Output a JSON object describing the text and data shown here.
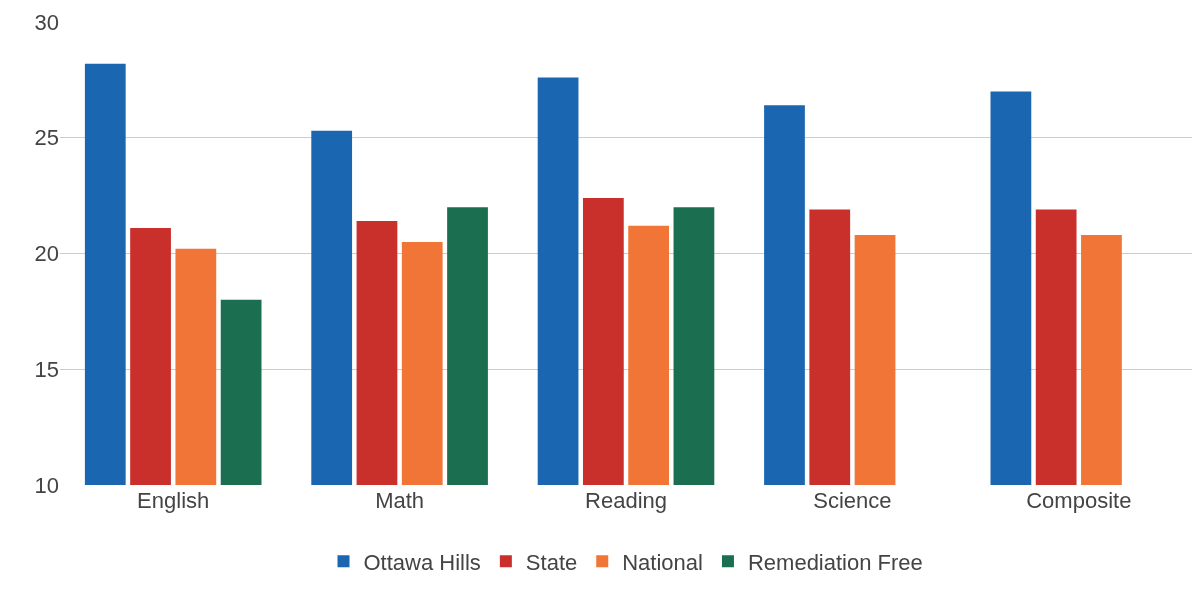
{
  "chart_data": {
    "type": "bar",
    "categories": [
      "English",
      "Math",
      "Reading",
      "Science",
      "Composite"
    ],
    "series": [
      {
        "name": "Ottawa Hills",
        "color": "#1a66b0",
        "values": [
          28.2,
          25.3,
          27.6,
          26.4,
          27.0
        ]
      },
      {
        "name": "State",
        "color": "#c9302c",
        "values": [
          21.1,
          21.4,
          22.4,
          21.9,
          21.9
        ]
      },
      {
        "name": "National",
        "color": "#f07536",
        "values": [
          20.2,
          20.5,
          21.2,
          20.8,
          20.8
        ]
      },
      {
        "name": "Remediation Free",
        "color": "#1b6e50",
        "values": [
          18.0,
          22.0,
          22.0,
          null,
          null
        ]
      }
    ],
    "ylim": [
      10,
      30
    ],
    "yticks": [
      10,
      15,
      20,
      25,
      30
    ],
    "grid": "y",
    "legend": "bottom"
  }
}
